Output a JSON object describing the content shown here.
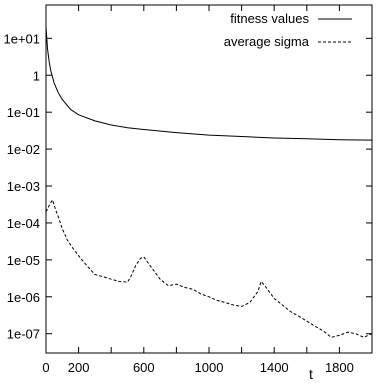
{
  "chart_data": {
    "type": "line",
    "title": "",
    "xlabel": "t",
    "ylabel": "",
    "x_scale": "linear",
    "y_scale": "log",
    "xlim": [
      0,
      2000
    ],
    "ylim": [
      3e-08,
      80.0
    ],
    "grid": false,
    "legend_position": "top-right",
    "x_ticks": [
      {
        "value": 0,
        "label": "0"
      },
      {
        "value": 200,
        "label": "200"
      },
      {
        "value": 600,
        "label": "600"
      },
      {
        "value": 1000,
        "label": "1000"
      },
      {
        "value": 1400,
        "label": "1400"
      },
      {
        "value": 1800,
        "label": "1800"
      }
    ],
    "x_minor_ticks": [
      400,
      800,
      1200,
      1600
    ],
    "y_ticks": [
      {
        "value": 10,
        "label": "1e+01"
      },
      {
        "value": 1,
        "label": "1"
      },
      {
        "value": 0.1,
        "label": "1e-01"
      },
      {
        "value": 0.01,
        "label": "1e-02"
      },
      {
        "value": 0.001,
        "label": "1e-03"
      },
      {
        "value": 0.0001,
        "label": "1e-04"
      },
      {
        "value": 1e-05,
        "label": "1e-05"
      },
      {
        "value": 1e-06,
        "label": "1e-06"
      },
      {
        "value": 1e-07,
        "label": "1e-07"
      }
    ],
    "series": [
      {
        "name": "fitness values",
        "style": "solid",
        "color": "#000000",
        "x": [
          0,
          10,
          20,
          30,
          50,
          75,
          100,
          150,
          200,
          300,
          400,
          500,
          600,
          800,
          1000,
          1200,
          1400,
          1600,
          1800,
          2000
        ],
        "y": [
          20,
          5,
          2.2,
          1.3,
          0.62,
          0.34,
          0.22,
          0.12,
          0.085,
          0.058,
          0.045,
          0.038,
          0.034,
          0.028,
          0.024,
          0.022,
          0.02,
          0.019,
          0.018,
          0.0175
        ]
      },
      {
        "name": "average sigma",
        "style": "dashed",
        "color": "#000000",
        "x": [
          0,
          20,
          40,
          60,
          80,
          100,
          130,
          160,
          200,
          250,
          300,
          350,
          400,
          450,
          500,
          520,
          550,
          580,
          600,
          620,
          650,
          700,
          750,
          800,
          850,
          900,
          950,
          1000,
          1050,
          1100,
          1150,
          1200,
          1250,
          1300,
          1320,
          1350,
          1400,
          1450,
          1500,
          1550,
          1600,
          1650,
          1700,
          1750,
          1800,
          1850,
          1900,
          1950,
          2000
        ],
        "y": [
          0.0002,
          0.0003,
          0.00042,
          0.00022,
          0.00013,
          7e-05,
          3.5e-05,
          2.2e-05,
          1.3e-05,
          7e-06,
          4e-06,
          3.5e-06,
          3e-06,
          2.6e-06,
          2.5e-06,
          3.5e-06,
          7e-06,
          1.1e-05,
          1.2e-05,
          9e-06,
          6e-06,
          3e-06,
          2e-06,
          2.2e-06,
          1.8e-06,
          1.6e-06,
          1.2e-06,
          1e-06,
          8e-07,
          7e-07,
          6e-07,
          5.5e-07,
          7e-07,
          1.4e-06,
          2.6e-06,
          1.8e-06,
          9e-07,
          6e-07,
          4e-07,
          3e-07,
          2.2e-07,
          1.6e-07,
          1.2e-07,
          8e-08,
          9e-08,
          1.1e-07,
          1e-07,
          8e-08,
          1e-07
        ]
      }
    ]
  }
}
